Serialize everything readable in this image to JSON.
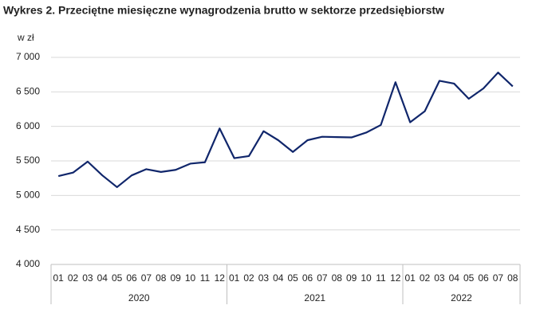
{
  "chart_data": {
    "type": "line",
    "title": "Wykres 2. Przeciętne miesięczne wynagrodzenia brutto w sektorze przedsiębiorstw",
    "y_label": "w zł",
    "groups": [
      {
        "label": "2020",
        "categories": [
          "01",
          "02",
          "03",
          "04",
          "05",
          "06",
          "07",
          "08",
          "09",
          "10",
          "11",
          "12"
        ]
      },
      {
        "label": "2021",
        "categories": [
          "01",
          "02",
          "03",
          "04",
          "05",
          "06",
          "07",
          "08",
          "09",
          "10",
          "11",
          "12"
        ]
      },
      {
        "label": "2022",
        "categories": [
          "01",
          "02",
          "03",
          "04",
          "05",
          "06",
          "07",
          "08"
        ]
      }
    ],
    "series": [
      {
        "color": "#10266b",
        "values": [
          5280,
          5330,
          5490,
          5290,
          5120,
          5290,
          5380,
          5340,
          5370,
          5460,
          5480,
          5970,
          5540,
          5570,
          5930,
          5800,
          5630,
          5800,
          5850,
          5845,
          5840,
          5910,
          6020,
          6640,
          6060,
          6220,
          6660,
          6620,
          6400,
          6550,
          6780,
          6580
        ]
      }
    ],
    "ylim": [
      4000,
      7000
    ],
    "yticks": [
      {
        "value": 4000,
        "label": "4 000"
      },
      {
        "value": 4500,
        "label": "4 500"
      },
      {
        "value": 5000,
        "label": "5 000"
      },
      {
        "value": 5500,
        "label": "5 500"
      },
      {
        "value": 6000,
        "label": "6 000"
      },
      {
        "value": 6500,
        "label": "6 500"
      },
      {
        "value": 7000,
        "label": "7 000"
      }
    ],
    "grid": true
  }
}
